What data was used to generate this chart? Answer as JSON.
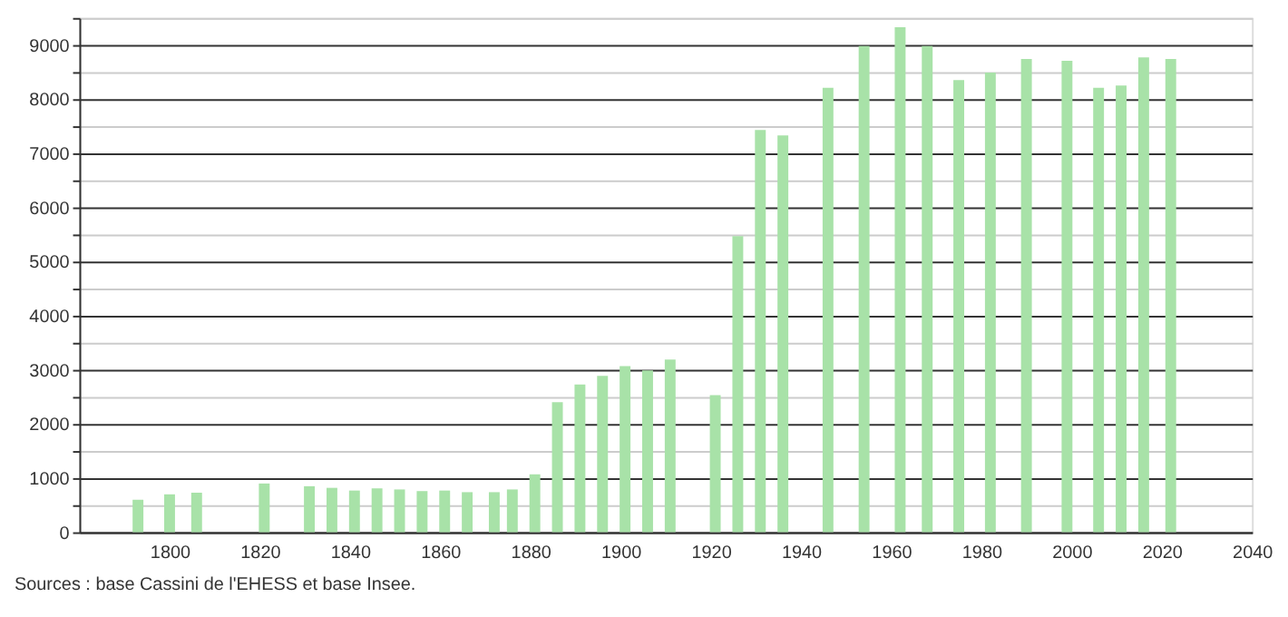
{
  "chart_data": {
    "type": "bar",
    "x": [
      1793,
      1800,
      1806,
      1821,
      1831,
      1836,
      1841,
      1846,
      1851,
      1856,
      1861,
      1866,
      1872,
      1876,
      1881,
      1886,
      1891,
      1896,
      1901,
      1906,
      1911,
      1921,
      1926,
      1931,
      1936,
      1946,
      1954,
      1962,
      1968,
      1975,
      1982,
      1990,
      1999,
      2006,
      2011,
      2016,
      2022
    ],
    "values": [
      600,
      700,
      730,
      900,
      850,
      820,
      770,
      810,
      790,
      760,
      770,
      740,
      740,
      790,
      1070,
      2400,
      2730,
      2890,
      3070,
      2990,
      3190,
      2530,
      5470,
      7430,
      7330,
      8210,
      8980,
      9330,
      8980,
      8350,
      8490,
      8740,
      8710,
      8210,
      8250,
      8770,
      8740
    ],
    "color": "#a8e2a8",
    "xlim": [
      1780,
      2040
    ],
    "xticks": [
      1800,
      1820,
      1840,
      1860,
      1880,
      1900,
      1920,
      1940,
      1960,
      1980,
      2000,
      2020,
      2040
    ],
    "ylim": [
      0,
      9500
    ],
    "yticks": [
      0,
      {
        "value": 500,
        "label": null
      },
      1000,
      {
        "value": 1500,
        "label": null
      },
      2000,
      {
        "value": 2500,
        "label": null
      },
      3000,
      {
        "value": 3500,
        "label": null
      },
      4000,
      {
        "value": 4500,
        "label": null
      },
      5000,
      {
        "value": 5500,
        "label": null
      },
      6000,
      {
        "value": 6500,
        "label": null
      },
      7000,
      {
        "value": 7500,
        "label": null
      },
      8000,
      {
        "value": 8500,
        "label": null
      },
      9000,
      {
        "value": 9500,
        "label": null
      }
    ],
    "grid": "y",
    "annotations": [
      "Sources : base Cassini de l'EHESS et base Insee."
    ]
  }
}
